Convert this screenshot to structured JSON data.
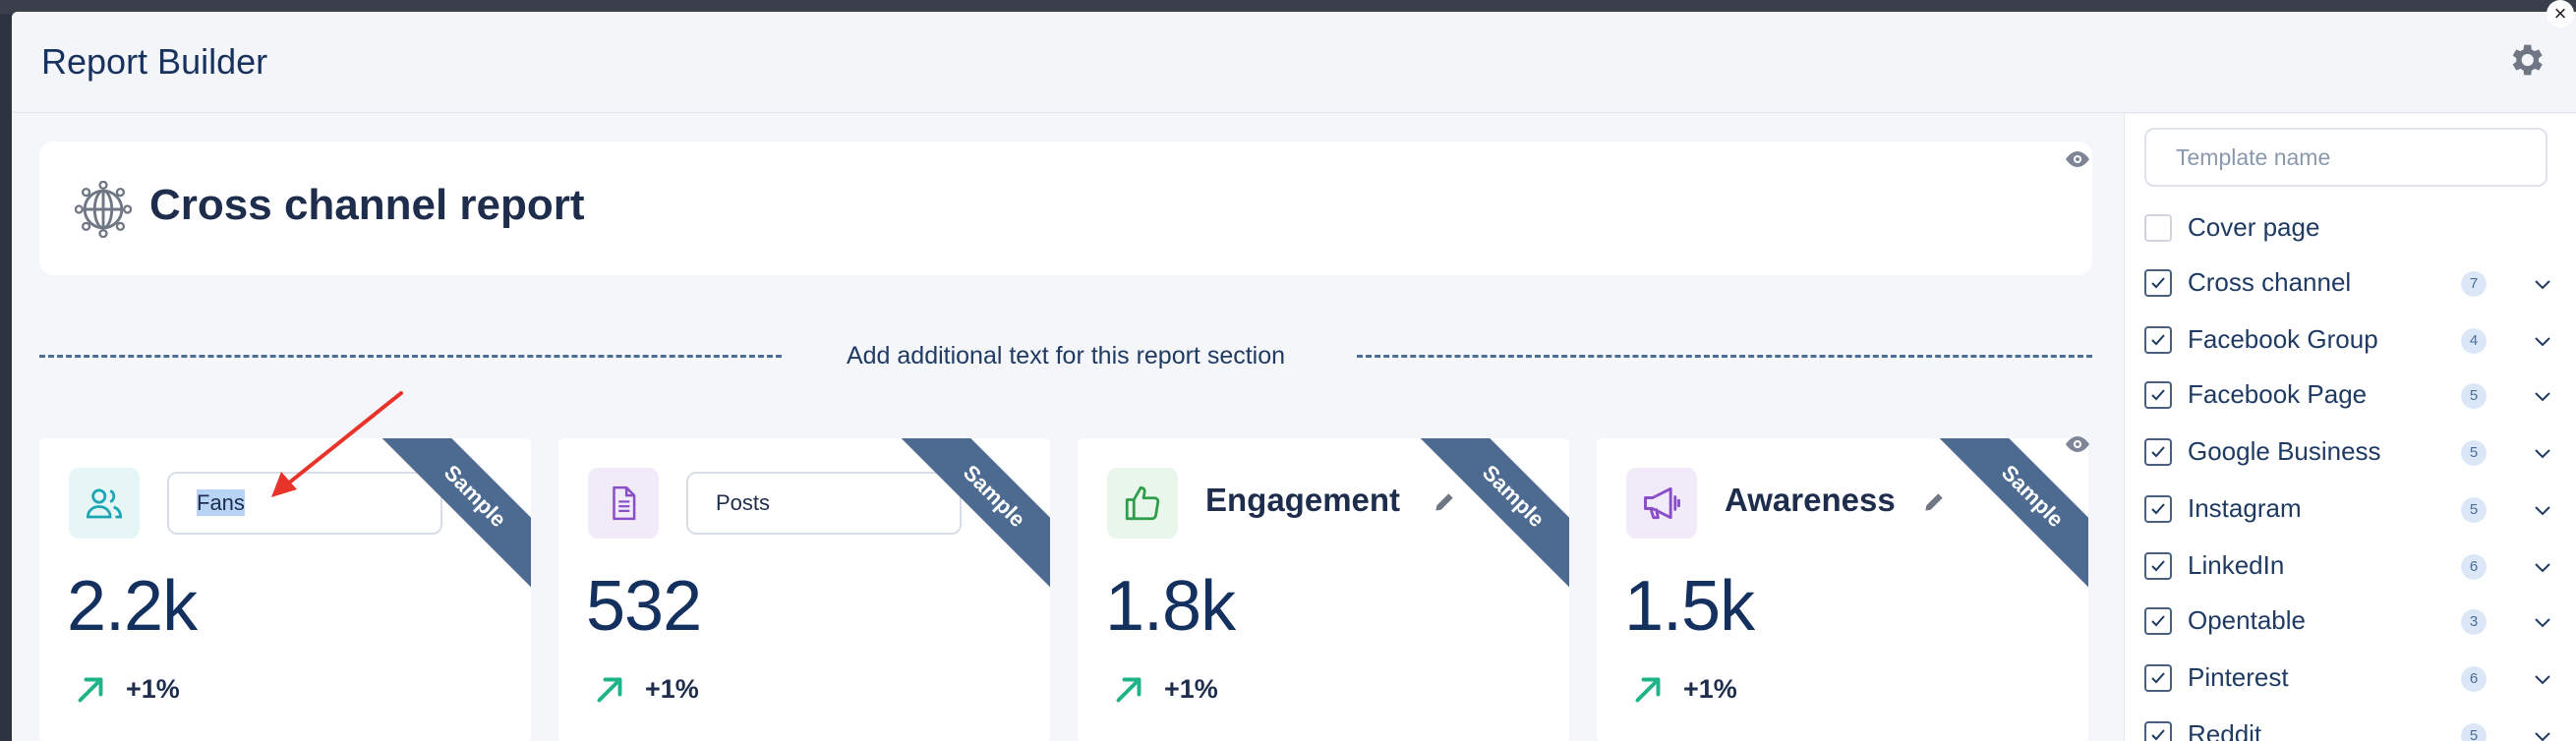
{
  "modal": {
    "title": "Report Builder",
    "close_glyph": "×",
    "settings_icon": "gear-icon"
  },
  "report": {
    "title": "Cross channel report",
    "icon": "globe-icon",
    "section_text": "Add additional text for this report section"
  },
  "metrics": [
    {
      "label": "Fans",
      "label_kind": "input",
      "value": "2.2k",
      "trend": "+1%",
      "badge": "Sample",
      "icon": "users-icon",
      "icon_bg": "#e6f6f7",
      "icon_color": "#1aa7b3"
    },
    {
      "label": "Posts",
      "label_kind": "input",
      "value": "532",
      "trend": "+1%",
      "badge": "Sample",
      "icon": "document-icon",
      "icon_bg": "#f1ebf9",
      "icon_color": "#8a4fc7"
    },
    {
      "label": "Engagement",
      "label_kind": "heading",
      "value": "1.8k",
      "trend": "+1%",
      "badge": "Sample",
      "icon": "thumbs-up-icon",
      "icon_bg": "#e9f6ec",
      "icon_color": "#2f9e4a"
    },
    {
      "label": "Awareness",
      "label_kind": "heading",
      "value": "1.5k",
      "trend": "+1%",
      "badge": "Sample",
      "icon": "megaphone-icon",
      "icon_bg": "#f1ebf9",
      "icon_color": "#8a4fc7"
    }
  ],
  "sidebar": {
    "template_placeholder": "Template name",
    "items": [
      {
        "label": "Cover page",
        "checked": false
      },
      {
        "label": "Cross channel",
        "checked": true,
        "count": "7"
      },
      {
        "label": "Facebook Group",
        "checked": true,
        "count": "4"
      },
      {
        "label": "Facebook Page",
        "checked": true,
        "count": "5"
      },
      {
        "label": "Google Business",
        "checked": true,
        "count": "5"
      },
      {
        "label": "Instagram",
        "checked": true,
        "count": "5"
      },
      {
        "label": "LinkedIn",
        "checked": true,
        "count": "6"
      },
      {
        "label": "Opentable",
        "checked": true,
        "count": "3"
      },
      {
        "label": "Pinterest",
        "checked": true,
        "count": "6"
      },
      {
        "label": "Reddit",
        "checked": true,
        "count": "5"
      }
    ]
  },
  "colors": {
    "accent": "#17325e",
    "trend_up": "#1fb389",
    "ribbon": "#4d6b91",
    "annotation_arrow": "#e8332a"
  }
}
